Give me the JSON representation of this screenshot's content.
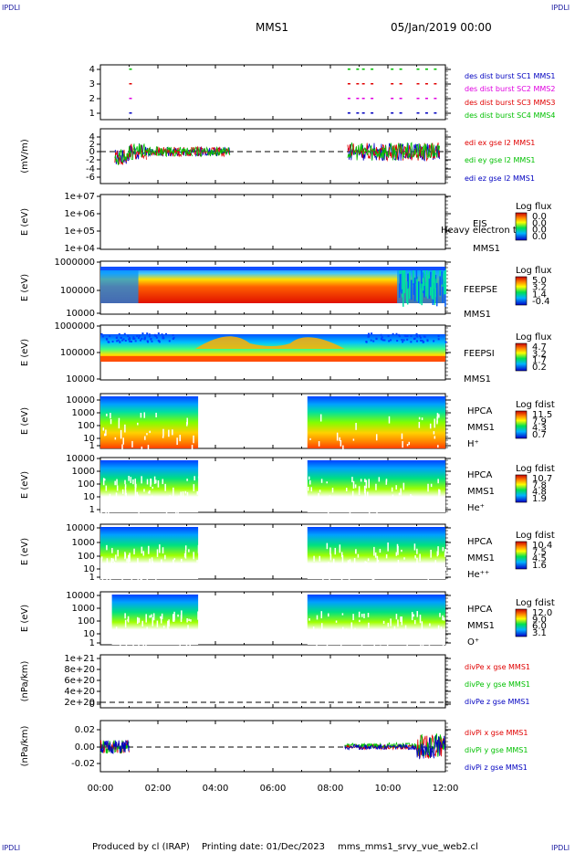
{
  "header": {
    "corner_left": "IPDLI",
    "corner_right": "IPDLI",
    "title": "MMS1",
    "date": "05/Jan/2019 00:00"
  },
  "footer": {
    "produced_by": "Produced by cl (IRAP)",
    "printing_date": "Printing date: 01/Dec/2023",
    "filename": "mms_mms1_srvy_vue_web2.cl"
  },
  "x_axis": {
    "ticks": [
      "00:00",
      "02:00",
      "04:00",
      "06:00",
      "08:00",
      "10:00",
      "12:00"
    ],
    "range_hours": [
      0,
      12
    ]
  },
  "colors": {
    "red": "#e00000",
    "magenta": "#e000e0",
    "green": "#00c000",
    "blue": "#0000c0"
  },
  "chart_data": [
    {
      "type": "scatter",
      "name": "burst",
      "ylabel": "",
      "yticks": [
        "4",
        "3",
        "2",
        "1"
      ],
      "ylim": [
        0.5,
        4.5
      ],
      "legend": [
        {
          "label": "des dist burst SC1 MMS1",
          "color": "#0000c0"
        },
        {
          "label": "des dist burst SC2 MMS2",
          "color": "#e000e0"
        },
        {
          "label": "des dist burst SC3 MMS3",
          "color": "#e00000"
        },
        {
          "label": "des dist burst SC4 MMS4",
          "color": "#00c000"
        }
      ],
      "series": [
        {
          "y": 4,
          "color": "#00c000",
          "hours": [
            1.0,
            8.6,
            8.9,
            9.1,
            9.4,
            10.1,
            10.4,
            11.0,
            11.3,
            11.6
          ]
        },
        {
          "y": 3,
          "color": "#e00000",
          "hours": [
            1.0,
            8.6,
            8.9,
            9.1,
            9.4,
            10.1,
            10.4,
            11.0,
            11.3,
            11.6
          ]
        },
        {
          "y": 2,
          "color": "#e000e0",
          "hours": [
            1.0,
            8.6,
            8.9,
            9.1,
            9.4,
            10.1,
            10.4,
            11.0,
            11.3,
            11.6
          ]
        },
        {
          "y": 1,
          "color": "#0000c0",
          "hours": [
            1.0,
            8.6,
            8.9,
            9.1,
            9.4,
            10.1,
            10.4,
            11.0,
            11.3,
            11.6
          ]
        }
      ]
    },
    {
      "type": "line",
      "name": "edi",
      "ylabel": "(mV/m)",
      "yticks": [
        "4",
        "2",
        "0",
        "-2",
        "-4",
        "-6"
      ],
      "ylim": [
        -7,
        5
      ],
      "legend": [
        {
          "label": "edi ex gse l2 MMS1",
          "color": "#e00000"
        },
        {
          "label": "edi ey gse l2 MMS1",
          "color": "#00c000"
        },
        {
          "label": "edi ez gse l2 MMS1",
          "color": "#0000c0"
        }
      ],
      "intervals_hours": [
        [
          0.5,
          1.6
        ],
        [
          1.6,
          3.2
        ],
        [
          3.2,
          4.5
        ],
        [
          8.6,
          11.8
        ]
      ]
    },
    {
      "type": "heatmap",
      "name": "eis",
      "ylabel": "E (eV)",
      "yticks": [
        "1e+07",
        "1e+06",
        "1e+05",
        "1e+04"
      ],
      "labels": [
        "EIS",
        "MMS1"
      ],
      "overlay_label": "Heavy electron to",
      "colorbar": {
        "title": "Log flux",
        "ticks": [
          "0.0",
          "0.0",
          "0.0",
          "0.0"
        ]
      }
    },
    {
      "type": "heatmap",
      "name": "feepse",
      "ylabel": "E (eV)",
      "yticks": [
        "1000000",
        "100000",
        "10000"
      ],
      "labels": [
        "FEEPSE",
        "MMS1"
      ],
      "colorbar": {
        "title": "Log flux",
        "ticks": [
          "5.0",
          "3.2",
          "1.4",
          "-0.4"
        ]
      }
    },
    {
      "type": "heatmap",
      "name": "feepsi",
      "ylabel": "E (eV)",
      "yticks": [
        "1000000",
        "100000",
        "10000"
      ],
      "labels": [
        "FEEPSI",
        "MMS1"
      ],
      "colorbar": {
        "title": "Log flux",
        "ticks": [
          "4.7",
          "3.2",
          "1.7",
          "0.2"
        ]
      }
    },
    {
      "type": "heatmap",
      "name": "hpca-h",
      "ylabel": "E (eV)",
      "yticks": [
        "10000",
        "1000",
        "100",
        "10",
        "1"
      ],
      "labels": [
        "HPCA",
        "MMS1",
        "H⁺"
      ],
      "coverage_hours": [
        [
          0.0,
          3.4
        ],
        [
          7.2,
          12.0
        ]
      ],
      "colorbar": {
        "title": "Log fdist",
        "ticks": [
          "11.5",
          "7.9",
          "4.3",
          "0.7"
        ]
      }
    },
    {
      "type": "heatmap",
      "name": "hpca-he",
      "ylabel": "E (eV)",
      "yticks": [
        "10000",
        "1000",
        "100",
        "10",
        "1"
      ],
      "labels": [
        "HPCA",
        "MMS1",
        "He⁺"
      ],
      "coverage_hours": [
        [
          0.0,
          3.4
        ],
        [
          7.2,
          12.0
        ]
      ],
      "colorbar": {
        "title": "Log fdist",
        "ticks": [
          "10.7",
          "7.8",
          "4.8",
          "1.9"
        ]
      }
    },
    {
      "type": "heatmap",
      "name": "hpca-he2",
      "ylabel": "E (eV)",
      "yticks": [
        "10000",
        "1000",
        "100",
        "10",
        "1"
      ],
      "labels": [
        "HPCA",
        "MMS1",
        "He⁺⁺"
      ],
      "coverage_hours": [
        [
          0.0,
          3.4
        ],
        [
          7.2,
          12.0
        ]
      ],
      "colorbar": {
        "title": "Log fdist",
        "ticks": [
          "10.4",
          "7.5",
          "4.5",
          "1.6"
        ]
      }
    },
    {
      "type": "heatmap",
      "name": "hpca-o",
      "ylabel": "E (eV)",
      "yticks": [
        "10000",
        "1000",
        "100",
        "10",
        "1"
      ],
      "labels": [
        "HPCA",
        "MMS1",
        "O⁺"
      ],
      "coverage_hours": [
        [
          0.4,
          3.4
        ],
        [
          7.2,
          12.0
        ]
      ],
      "colorbar": {
        "title": "Log fdist",
        "ticks": [
          "12.0",
          "9.0",
          "6.0",
          "3.1"
        ]
      }
    },
    {
      "type": "line",
      "name": "divpe",
      "ylabel": "(nPa/km)",
      "yticks": [
        "1e+21",
        "8e+20",
        "6e+20",
        "4e+20",
        "2e+20",
        "0"
      ],
      "ylim": [
        0,
        1.1e+21
      ],
      "legend": [
        {
          "label": "divPe x gse MMS1",
          "color": "#e00000"
        },
        {
          "label": "divPe y gse MMS1",
          "color": "#00c000"
        },
        {
          "label": "divPe z gse MMS1",
          "color": "#0000c0"
        }
      ]
    },
    {
      "type": "line",
      "name": "divpi",
      "ylabel": "(nPa/km)",
      "yticks": [
        "0.02",
        "0.00",
        "-0.02"
      ],
      "ylim": [
        -0.035,
        0.03
      ],
      "legend": [
        {
          "label": "divPi x gse MMS1",
          "color": "#e00000"
        },
        {
          "label": "divPi y gse MMS1",
          "color": "#00c000"
        },
        {
          "label": "divPi z gse MMS1",
          "color": "#0000c0"
        }
      ],
      "intervals_hours": [
        [
          0.0,
          1.0
        ],
        [
          8.5,
          12.0
        ]
      ]
    }
  ]
}
